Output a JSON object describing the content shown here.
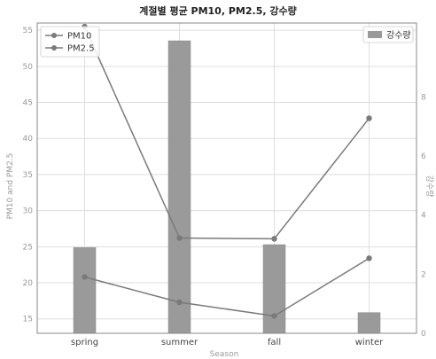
{
  "chart_data": {
    "type": "bar+line",
    "title": "계절별 평균 PM10, PM2.5, 강수량",
    "xlabel": "Season",
    "ylabel_left": "PM10 and PM2.5",
    "ylabel_right": "강수량",
    "categories": [
      "spring",
      "summer",
      "fall",
      "winter"
    ],
    "series": [
      {
        "name": "PM10",
        "axis": "left",
        "kind": "line",
        "values": [
          55.5,
          26.2,
          26.1,
          42.8
        ]
      },
      {
        "name": "PM2.5",
        "axis": "left",
        "kind": "line",
        "values": [
          20.8,
          17.3,
          15.4,
          23.4
        ]
      },
      {
        "name": "강수량",
        "axis": "right",
        "kind": "bar",
        "values": [
          2.9,
          9.9,
          3.0,
          0.7
        ]
      }
    ],
    "ylim_left": [
      13,
      56
    ],
    "yticks_left": [
      15,
      20,
      25,
      30,
      35,
      40,
      45,
      50,
      55
    ],
    "ylim_right": [
      0,
      10.5
    ],
    "yticks_right": [
      0,
      2,
      4,
      6,
      8
    ],
    "grid": true,
    "legend_left": "top-left",
    "legend_right": "top-right",
    "colors": {
      "line": "#7a7a7a",
      "bar": "#9a9a9a",
      "grid": "#dddddd",
      "axis": "#888888"
    }
  }
}
